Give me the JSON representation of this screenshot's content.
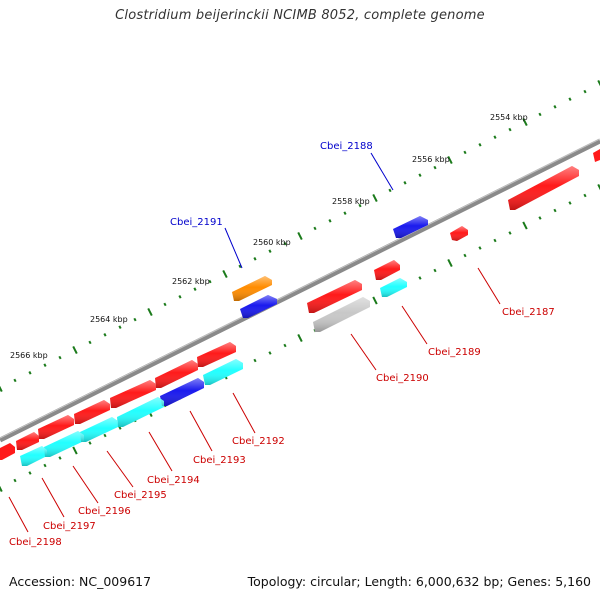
{
  "title": "Clostridium beijerinckii NCIMB 8052, complete genome",
  "footer": {
    "accession": "Accession: NC_009617",
    "summary": "Topology: circular; Length: 6,000,632 bp; Genes: 5,160"
  },
  "colors": {
    "backbone": "#8a8a8a",
    "tick": "#1a7a1a",
    "forward_cds": "#ff1a1a",
    "reverse_cds": "#ff1a1a",
    "blue_cds": "#1a1aee",
    "orange_cds": "#ff8c00",
    "cyan_cds": "#22ffff",
    "grey_cds": "#c8c8c8",
    "label_blue": "#0000cc",
    "label_red": "#cc0000"
  },
  "kbp_labels": [
    "2554 kbp",
    "2556 kbp",
    "2558 kbp",
    "2560 kbp",
    "2562 kbp",
    "2564 kbp",
    "2566 kbp"
  ],
  "gene_labels": {
    "g2188": "Cbei_2188",
    "g2191": "Cbei_2191",
    "g2187": "Cbei_2187",
    "g2189": "Cbei_2189",
    "g2190": "Cbei_2190",
    "g2192": "Cbei_2192",
    "g2193": "Cbei_2193",
    "g2194": "Cbei_2194",
    "g2195": "Cbei_2195",
    "g2196": "Cbei_2196",
    "g2197": "Cbei_2197",
    "g2198": "Cbei_2198"
  }
}
